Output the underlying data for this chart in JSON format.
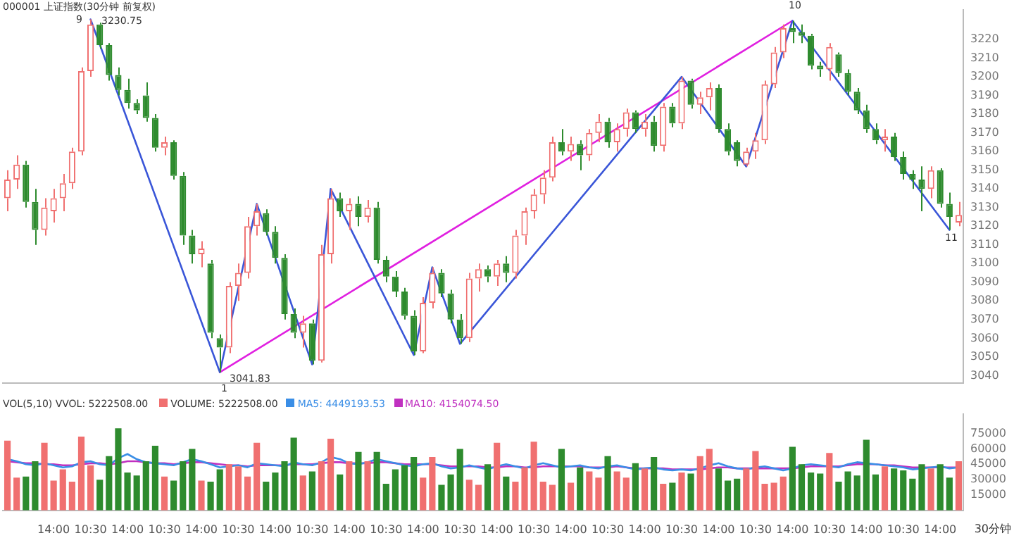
{
  "chart_data": [
    {
      "type": "candlestick",
      "title": "000001 上证指数(30分钟 前复权)",
      "categories": [
        null,
        null,
        null,
        null,
        null,
        null,
        null,
        null,
        null,
        null,
        null,
        null,
        null,
        null,
        null,
        null,
        null,
        null,
        null,
        null,
        null,
        null,
        null,
        null,
        null,
        null,
        null,
        null,
        null,
        null,
        null,
        null,
        null,
        null,
        null,
        null,
        null,
        null,
        null,
        null,
        null,
        null,
        null,
        null,
        null,
        null,
        null,
        null,
        null,
        null,
        null,
        null,
        null,
        null,
        null,
        null,
        null,
        null,
        null,
        null,
        null,
        null,
        null,
        null,
        null,
        null,
        null,
        null,
        null,
        null,
        null,
        null,
        null,
        null,
        null,
        null,
        null,
        null,
        null,
        null,
        null,
        null,
        null,
        null,
        null,
        null,
        null,
        null,
        null,
        null,
        null,
        null,
        null,
        null,
        null,
        null,
        null,
        null,
        null,
        null,
        null,
        null,
        null,
        null
      ],
      "ohlc": [
        [
          3135,
          3150,
          3128,
          3145
        ],
        [
          3145,
          3158,
          3140,
          3153
        ],
        [
          3153,
          3155,
          3130,
          3133
        ],
        [
          3133,
          3140,
          3110,
          3118
        ],
        [
          3118,
          3135,
          3115,
          3130
        ],
        [
          3128,
          3140,
          3122,
          3135
        ],
        [
          3135,
          3148,
          3128,
          3143
        ],
        [
          3143,
          3162,
          3140,
          3160
        ],
        [
          3160,
          3205,
          3158,
          3203
        ],
        [
          3203,
          3230.75,
          3200,
          3228
        ],
        [
          3228,
          3229,
          3215,
          3217
        ],
        [
          3217,
          3218,
          3198,
          3201
        ],
        [
          3201,
          3205,
          3190,
          3193
        ],
        [
          3193,
          3199,
          3183,
          3186
        ],
        [
          3186,
          3188,
          3180,
          3182
        ],
        [
          3190,
          3197,
          3176,
          3178
        ],
        [
          3178,
          3180,
          3160,
          3162
        ],
        [
          3162,
          3168,
          3158,
          3165
        ],
        [
          3165,
          3166,
          3145,
          3147
        ],
        [
          3147,
          3149,
          3110,
          3115
        ],
        [
          3115,
          3118,
          3100,
          3105
        ],
        [
          3105,
          3112,
          3098,
          3108
        ],
        [
          3100,
          3102,
          3060,
          3063
        ],
        [
          3060,
          3062,
          3041.83,
          3055
        ],
        [
          3055,
          3090,
          3052,
          3088
        ],
        [
          3088,
          3100,
          3080,
          3095
        ],
        [
          3095,
          3125,
          3092,
          3120
        ],
        [
          3120,
          3132,
          3115,
          3128
        ],
        [
          3127,
          3129,
          3115,
          3117
        ],
        [
          3117,
          3120,
          3100,
          3103
        ],
        [
          3103,
          3105,
          3070,
          3073
        ],
        [
          3073,
          3076,
          3060,
          3063
        ],
        [
          3063,
          3072,
          3055,
          3068
        ],
        [
          3068,
          3070,
          3046,
          3048
        ],
        [
          3048,
          3110,
          3047,
          3105
        ],
        [
          3105,
          3140,
          3100,
          3135
        ],
        [
          3135,
          3138,
          3125,
          3128
        ],
        [
          3128,
          3135,
          3118,
          3132
        ],
        [
          3132,
          3136,
          3120,
          3125
        ],
        [
          3125,
          3134,
          3122,
          3130
        ],
        [
          3130,
          3133,
          3100,
          3102
        ],
        [
          3102,
          3104,
          3090,
          3093
        ],
        [
          3093,
          3096,
          3082,
          3085
        ],
        [
          3085,
          3087,
          3070,
          3072
        ],
        [
          3072,
          3075,
          3051,
          3053
        ],
        [
          3053,
          3082,
          3052,
          3079
        ],
        [
          3079,
          3098,
          3076,
          3095
        ],
        [
          3095,
          3097,
          3082,
          3084
        ],
        [
          3084,
          3086,
          3068,
          3070
        ],
        [
          3070,
          3073,
          3057,
          3060
        ],
        [
          3060,
          3095,
          3058,
          3092
        ],
        [
          3092,
          3100,
          3085,
          3097
        ],
        [
          3097,
          3099,
          3090,
          3093
        ],
        [
          3093,
          3102,
          3088,
          3100
        ],
        [
          3100,
          3104,
          3090,
          3095
        ],
        [
          3095,
          3118,
          3092,
          3115
        ],
        [
          3115,
          3130,
          3110,
          3128
        ],
        [
          3128,
          3140,
          3124,
          3137
        ],
        [
          3137,
          3150,
          3132,
          3146
        ],
        [
          3146,
          3168,
          3144,
          3165
        ],
        [
          3165,
          3172,
          3158,
          3160
        ],
        [
          3160,
          3168,
          3155,
          3164
        ],
        [
          3164,
          3166,
          3150,
          3158
        ],
        [
          3158,
          3172,
          3155,
          3170
        ],
        [
          3170,
          3180,
          3165,
          3176
        ],
        [
          3176,
          3178,
          3162,
          3165
        ],
        [
          3165,
          3175,
          3160,
          3172
        ],
        [
          3172,
          3183,
          3168,
          3181
        ],
        [
          3181,
          3182,
          3170,
          3172
        ],
        [
          3172,
          3180,
          3168,
          3176
        ],
        [
          3176,
          3179,
          3160,
          3163
        ],
        [
          3163,
          3186,
          3160,
          3184
        ],
        [
          3184,
          3186,
          3173,
          3175
        ],
        [
          3175,
          3200,
          3172,
          3198
        ],
        [
          3198,
          3199,
          3183,
          3185
        ],
        [
          3185,
          3192,
          3180,
          3189
        ],
        [
          3189,
          3197,
          3182,
          3194
        ],
        [
          3194,
          3196,
          3170,
          3172
        ],
        [
          3172,
          3175,
          3158,
          3160
        ],
        [
          3165,
          3166,
          3152,
          3155
        ],
        [
          3153,
          3162,
          3152,
          3160
        ],
        [
          3160,
          3170,
          3156,
          3166
        ],
        [
          3166,
          3198,
          3164,
          3196
        ],
        [
          3196,
          3216,
          3194,
          3213
        ],
        [
          3213,
          3228,
          3210,
          3226
        ],
        [
          3226,
          3230,
          3218,
          3224
        ],
        [
          3224,
          3228,
          3218,
          3222
        ],
        [
          3222,
          3223,
          3204,
          3206
        ],
        [
          3206,
          3208,
          3200,
          3204
        ],
        [
          3204,
          3218,
          3198,
          3216
        ],
        [
          3212,
          3213,
          3200,
          3202
        ],
        [
          3202,
          3204,
          3190,
          3192
        ],
        [
          3192,
          3194,
          3180,
          3182
        ],
        [
          3182,
          3185,
          3170,
          3172
        ],
        [
          3172,
          3175,
          3164,
          3166
        ],
        [
          3166,
          3172,
          3160,
          3168
        ],
        [
          3168,
          3170,
          3155,
          3157
        ],
        [
          3157,
          3160,
          3145,
          3148
        ],
        [
          3148,
          3150,
          3140,
          3145
        ],
        [
          3145,
          3152,
          3128,
          3140
        ],
        [
          3140,
          3152,
          3135,
          3150
        ],
        [
          3150,
          3151,
          3130,
          3132
        ],
        [
          3132,
          3138,
          3118,
          3125
        ],
        [
          3122,
          3133,
          3120,
          3126
        ]
      ],
      "colors": [
        "#f07070",
        "#f07070",
        "#2e8b2e",
        "#2e8b2e",
        "#f07070",
        "#f07070",
        "#f07070",
        "#f07070",
        "#f07070",
        "#f07070",
        "#2e8b2e",
        "#2e8b2e",
        "#2e8b2e",
        "#2e8b2e",
        "#2e8b2e",
        "#2e8b2e",
        "#2e8b2e",
        "#f07070",
        "#2e8b2e",
        "#2e8b2e",
        "#2e8b2e",
        "#f07070",
        "#2e8b2e",
        "#2e8b2e",
        "#f07070",
        "#f07070",
        "#f07070",
        "#f07070",
        "#2e8b2e",
        "#2e8b2e",
        "#2e8b2e",
        "#2e8b2e",
        "#f07070",
        "#2e8b2e",
        "#f07070",
        "#f07070",
        "#2e8b2e",
        "#f07070",
        "#2e8b2e",
        "#f07070",
        "#2e8b2e",
        "#2e8b2e",
        "#2e8b2e",
        "#2e8b2e",
        "#2e8b2e",
        "#f07070",
        "#f07070",
        "#2e8b2e",
        "#2e8b2e",
        "#2e8b2e",
        "#f07070",
        "#f07070",
        "#2e8b2e",
        "#f07070",
        "#2e8b2e",
        "#f07070",
        "#f07070",
        "#f07070",
        "#f07070",
        "#f07070",
        "#2e8b2e",
        "#f07070",
        "#2e8b2e",
        "#f07070",
        "#f07070",
        "#2e8b2e",
        "#f07070",
        "#f07070",
        "#2e8b2e",
        "#f07070",
        "#2e8b2e",
        "#f07070",
        "#2e8b2e",
        "#f07070",
        "#2e8b2e",
        "#f07070",
        "#f07070",
        "#2e8b2e",
        "#2e8b2e",
        "#2e8b2e",
        "#f07070",
        "#f07070",
        "#f07070",
        "#f07070",
        "#f07070",
        "#2e8b2e",
        "#2e8b2e",
        "#2e8b2e",
        "#2e8b2e",
        "#f07070",
        "#2e8b2e",
        "#2e8b2e",
        "#2e8b2e",
        "#2e8b2e",
        "#2e8b2e",
        "#f07070",
        "#2e8b2e",
        "#2e8b2e",
        "#2e8b2e",
        "#2e8b2e",
        "#f07070",
        "#2e8b2e",
        "#2e8b2e",
        "#f07070"
      ],
      "series": [
        {
          "type": "line",
          "color": "#3a56d8",
          "values": [
            null,
            null,
            null,
            null,
            null,
            null,
            null,
            null,
            null,
            3230.75,
            null,
            null,
            null,
            null,
            null,
            null,
            null,
            null,
            null,
            null,
            null,
            null,
            null,
            3041.83,
            null,
            null,
            null,
            3132,
            null,
            null,
            null,
            null,
            null,
            3046,
            null,
            3140,
            null,
            null,
            null,
            null,
            null,
            null,
            null,
            null,
            3051,
            null,
            3098,
            null,
            null,
            3057,
            null,
            null,
            null,
            null,
            null,
            null,
            null,
            null,
            null,
            null,
            null,
            null,
            null,
            null,
            null,
            null,
            null,
            null,
            null,
            null,
            null,
            null,
            null,
            3200,
            null,
            null,
            null,
            null,
            null,
            null,
            3152,
            null,
            null,
            null,
            null,
            3230,
            null,
            null,
            null,
            null,
            null,
            null,
            null,
            null,
            null,
            null,
            null,
            null,
            null,
            null,
            null,
            null,
            3118,
            null
          ]
        },
        {
          "type": "line",
          "color": "#e020e0",
          "values": [
            null,
            null,
            null,
            null,
            null,
            null,
            null,
            null,
            null,
            null,
            null,
            null,
            null,
            null,
            null,
            null,
            null,
            null,
            null,
            null,
            null,
            null,
            null,
            3041.83,
            null,
            null,
            null,
            null,
            null,
            null,
            null,
            null,
            null,
            null,
            null,
            null,
            null,
            null,
            null,
            null,
            null,
            null,
            null,
            null,
            null,
            null,
            null,
            null,
            null,
            null,
            null,
            null,
            null,
            null,
            null,
            null,
            null,
            null,
            null,
            null,
            null,
            null,
            null,
            null,
            null,
            null,
            null,
            null,
            null,
            null,
            null,
            null,
            null,
            null,
            null,
            null,
            null,
            null,
            null,
            null,
            null,
            null,
            null,
            null,
            null,
            3230,
            null,
            null,
            null,
            null,
            null,
            null,
            null,
            null,
            null,
            null,
            null,
            null,
            null,
            null,
            null,
            null,
            null,
            null
          ]
        }
      ],
      "ylim": [
        3036,
        3236
      ],
      "yticks": [
        3040,
        3050,
        3060,
        3070,
        3080,
        3090,
        3100,
        3110,
        3120,
        3130,
        3140,
        3150,
        3160,
        3170,
        3180,
        3190,
        3200,
        3210,
        3220
      ],
      "tick_labels": "y",
      "annotations": [
        "9",
        "3230.75",
        "1",
        "3041.83",
        "10",
        "11"
      ]
    },
    {
      "type": "bar",
      "title": "VOL(5,10) VVOL: 5222508.00",
      "categories": [
        null,
        null,
        null,
        null,
        null,
        "14:00",
        null,
        null,
        null,
        "10:30",
        null,
        null,
        null,
        "14:00",
        null,
        null,
        null,
        "10:30",
        null,
        null,
        null,
        "14:00",
        null,
        null,
        null,
        "10:30",
        null,
        null,
        null,
        "14:00",
        null,
        null,
        null,
        "10:30",
        null,
        null,
        null,
        "14:00",
        null,
        null,
        null,
        "10:30",
        null,
        null,
        null,
        "14:00",
        null,
        null,
        null,
        "10:30",
        null,
        null,
        null,
        "14:00",
        null,
        null,
        null,
        "10:30",
        null,
        null,
        null,
        "14:00",
        null,
        null,
        null,
        "10:30",
        null,
        null,
        null,
        "14:00",
        null,
        null,
        null,
        "10:30",
        null,
        null,
        null,
        "14:00",
        null,
        null,
        null,
        "10:30",
        null,
        null,
        null,
        "14:00",
        null,
        null,
        null,
        "10:30",
        null,
        null,
        null,
        "14:00",
        null,
        null,
        null,
        "10:30",
        null,
        null,
        null,
        "14:00",
        null,
        null
      ],
      "series": [
        {
          "type": "bar",
          "name": "VOLUME: 5222508.00",
          "values": [
            68000,
            32000,
            33000,
            48000,
            66000,
            29000,
            40000,
            28000,
            72000,
            44000,
            30000,
            53000,
            80000,
            37000,
            34000,
            48000,
            63000,
            33000,
            29000,
            48000,
            60000,
            29000,
            28000,
            40000,
            45000,
            43000,
            33000,
            66000,
            28000,
            37000,
            48000,
            71000,
            34000,
            38000,
            48000,
            70000,
            35000,
            48000,
            57000,
            48000,
            57000,
            26000,
            40000,
            44000,
            52000,
            32000,
            52000,
            25000,
            35000,
            60000,
            30000,
            25000,
            45000,
            66000,
            33000,
            28000,
            42000,
            67000,
            28000,
            25000,
            60000,
            27000,
            42000,
            38000,
            32000,
            53000,
            38000,
            32000,
            46000,
            41000,
            52000,
            26000,
            27000,
            37000,
            36000,
            53000,
            60000,
            41000,
            29000,
            31000,
            41000,
            58000,
            26000,
            27000,
            33000,
            62000,
            45000,
            37000,
            36000,
            56000,
            28000,
            38000,
            34000,
            69000,
            35000,
            43000,
            41000,
            39000,
            31000,
            45000,
            41000,
            45000,
            32000,
            48000
          ],
          "colors": [
            "#f07070",
            "#f07070",
            "#2e8b2e",
            "#2e8b2e",
            "#f07070",
            "#f07070",
            "#f07070",
            "#f07070",
            "#f07070",
            "#f07070",
            "#2e8b2e",
            "#2e8b2e",
            "#2e8b2e",
            "#2e8b2e",
            "#2e8b2e",
            "#2e8b2e",
            "#2e8b2e",
            "#f07070",
            "#2e8b2e",
            "#2e8b2e",
            "#2e8b2e",
            "#f07070",
            "#2e8b2e",
            "#2e8b2e",
            "#f07070",
            "#f07070",
            "#f07070",
            "#f07070",
            "#2e8b2e",
            "#2e8b2e",
            "#2e8b2e",
            "#2e8b2e",
            "#f07070",
            "#2e8b2e",
            "#f07070",
            "#f07070",
            "#2e8b2e",
            "#f07070",
            "#2e8b2e",
            "#f07070",
            "#2e8b2e",
            "#2e8b2e",
            "#2e8b2e",
            "#2e8b2e",
            "#2e8b2e",
            "#f07070",
            "#f07070",
            "#2e8b2e",
            "#2e8b2e",
            "#2e8b2e",
            "#f07070",
            "#f07070",
            "#2e8b2e",
            "#f07070",
            "#2e8b2e",
            "#f07070",
            "#f07070",
            "#f07070",
            "#f07070",
            "#f07070",
            "#2e8b2e",
            "#f07070",
            "#2e8b2e",
            "#f07070",
            "#f07070",
            "#2e8b2e",
            "#f07070",
            "#f07070",
            "#2e8b2e",
            "#f07070",
            "#2e8b2e",
            "#f07070",
            "#2e8b2e",
            "#f07070",
            "#2e8b2e",
            "#f07070",
            "#f07070",
            "#2e8b2e",
            "#2e8b2e",
            "#2e8b2e",
            "#f07070",
            "#f07070",
            "#f07070",
            "#f07070",
            "#f07070",
            "#2e8b2e",
            "#2e8b2e",
            "#2e8b2e",
            "#2e8b2e",
            "#f07070",
            "#2e8b2e",
            "#2e8b2e",
            "#2e8b2e",
            "#2e8b2e",
            "#2e8b2e",
            "#f07070",
            "#2e8b2e",
            "#2e8b2e",
            "#2e8b2e",
            "#2e8b2e",
            "#f07070",
            "#2e8b2e",
            "#2e8b2e",
            "#f07070"
          ]
        },
        {
          "type": "line",
          "name": "MA5: 4449193.53",
          "color": "#3a8ee6",
          "values": [
            50000,
            48000,
            45000,
            44000,
            46000,
            44000,
            42000,
            43000,
            47000,
            48000,
            45000,
            44000,
            51000,
            55000,
            50000,
            47000,
            46000,
            45000,
            44000,
            47000,
            50000,
            48000,
            45000,
            42000,
            43000,
            44000,
            42000,
            46000,
            45000,
            44000,
            43000,
            47000,
            45000,
            44000,
            47000,
            52000,
            50000,
            46000,
            45000,
            47000,
            50000,
            48000,
            46000,
            44000,
            43000,
            45000,
            46000,
            43000,
            41000,
            42000,
            44000,
            42000,
            40000,
            43000,
            45000,
            43000,
            41000,
            44000,
            46000,
            44000,
            42000,
            43000,
            44000,
            42000,
            41000,
            43000,
            44000,
            42000,
            40000,
            41000,
            42000,
            40000,
            39000,
            40000,
            39000,
            41000,
            44000,
            46000,
            43000,
            41000,
            40000,
            42000,
            43000,
            41000,
            39000,
            41000,
            44000,
            45000,
            44000,
            43000,
            42000,
            45000,
            47000,
            46000,
            45000,
            44000,
            43000,
            42000,
            40000,
            41000,
            42000,
            43000,
            41000,
            42000
          ]
        },
        {
          "type": "line",
          "name": "MA10: 4154074.50",
          "color": "#c030c0",
          "values": [
            48000,
            47000,
            46000,
            46000,
            45000,
            45000,
            44000,
            44000,
            45000,
            46000,
            46000,
            45000,
            46000,
            48000,
            48000,
            47000,
            46000,
            46000,
            45000,
            46000,
            47000,
            47000,
            46000,
            45000,
            44000,
            44000,
            43000,
            44000,
            44000,
            44000,
            44000,
            45000,
            45000,
            45000,
            46000,
            47000,
            47000,
            46000,
            46000,
            46000,
            47000,
            47000,
            46000,
            45000,
            45000,
            45000,
            45000,
            44000,
            43000,
            43000,
            43000,
            43000,
            42000,
            42000,
            43000,
            43000,
            42000,
            42000,
            43000,
            43000,
            43000,
            43000,
            43000,
            42000,
            42000,
            42000,
            43000,
            42000,
            41000,
            41000,
            41000,
            41000,
            40000,
            40000,
            40000,
            40000,
            41000,
            42000,
            42000,
            41000,
            41000,
            41000,
            41000,
            41000,
            41000,
            41000,
            42000,
            43000,
            43000,
            43000,
            43000,
            44000,
            45000,
            45000,
            45000,
            44000,
            44000,
            43000,
            42000,
            42000,
            42000,
            42000,
            42000,
            42000
          ]
        }
      ],
      "ylim": [
        0,
        94000
      ],
      "yticks": [
        15000,
        30000,
        45000,
        60000,
        75000
      ],
      "legend": "top left",
      "annotations": [
        "30分钟"
      ]
    }
  ]
}
